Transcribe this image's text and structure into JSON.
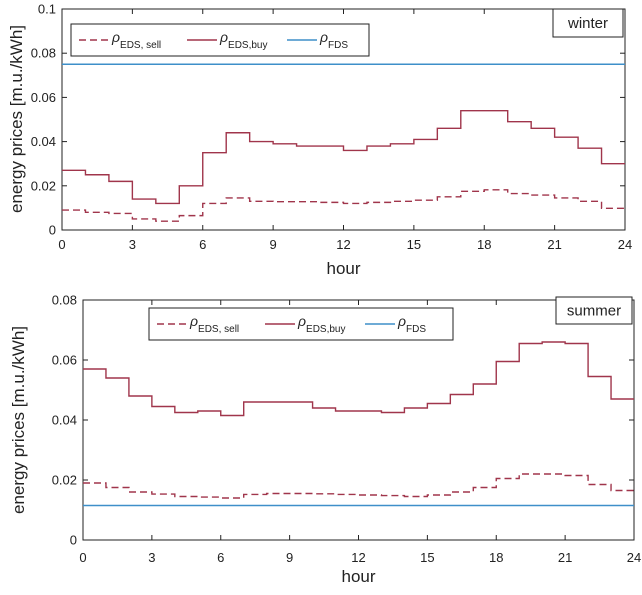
{
  "chart_data": [
    {
      "type": "line",
      "tag": "winter",
      "xlabel": "hour",
      "ylabel": "energy prices [m.u./kWh]",
      "xlim": [
        0,
        24
      ],
      "ylim": [
        0,
        0.1
      ],
      "xticks": [
        0,
        3,
        6,
        9,
        12,
        15,
        18,
        21,
        24
      ],
      "yticks": [
        0,
        0.02,
        0.04,
        0.06,
        0.08,
        0.1
      ],
      "ytick_labels": [
        "0",
        "0.02",
        "0.04",
        "0.06",
        "0.08",
        "0.1"
      ],
      "legend_position": "top-left",
      "series": [
        {
          "name_base": "ρ",
          "name_sub": "EDS, sell",
          "style": "stairs-dashed",
          "color": "#a0354b",
          "values": [
            0.009,
            0.008,
            0.0075,
            0.005,
            0.004,
            0.0065,
            0.012,
            0.0145,
            0.013,
            0.0128,
            0.0128,
            0.0125,
            0.012,
            0.0125,
            0.013,
            0.0135,
            0.015,
            0.0175,
            0.0182,
            0.0165,
            0.0158,
            0.0145,
            0.013,
            0.0098
          ]
        },
        {
          "name_base": "ρ",
          "name_sub": "EDS,buy",
          "style": "stairs",
          "color": "#a0354b",
          "values": [
            0.027,
            0.025,
            0.022,
            0.014,
            0.012,
            0.02,
            0.035,
            0.044,
            0.04,
            0.039,
            0.038,
            0.038,
            0.036,
            0.038,
            0.039,
            0.041,
            0.046,
            0.054,
            0.054,
            0.049,
            0.046,
            0.042,
            0.037,
            0.03
          ]
        },
        {
          "name_base": "ρ",
          "name_sub": "FDS",
          "style": "line",
          "color": "#3e8fc9",
          "values": [
            0.075,
            0.075
          ]
        }
      ]
    },
    {
      "type": "line",
      "tag": "summer",
      "xlabel": "hour",
      "ylabel": "energy prices [m.u./kWh]",
      "xlim": [
        0,
        24
      ],
      "ylim": [
        0,
        0.08
      ],
      "xticks": [
        0,
        3,
        6,
        9,
        12,
        15,
        18,
        21,
        24
      ],
      "yticks": [
        0,
        0.02,
        0.04,
        0.06,
        0.08
      ],
      "ytick_labels": [
        "0",
        "0.02",
        "0.04",
        "0.06",
        "0.08"
      ],
      "legend_position": "top-center",
      "series": [
        {
          "name_base": "ρ",
          "name_sub": "EDS, sell",
          "style": "stairs-dashed",
          "color": "#a0354b",
          "values": [
            0.019,
            0.0175,
            0.016,
            0.0153,
            0.0145,
            0.0143,
            0.014,
            0.0152,
            0.0155,
            0.0155,
            0.0154,
            0.0152,
            0.015,
            0.0148,
            0.0145,
            0.015,
            0.016,
            0.0175,
            0.0205,
            0.022,
            0.022,
            0.0215,
            0.0185,
            0.0165
          ]
        },
        {
          "name_base": "ρ",
          "name_sub": "EDS,buy",
          "style": "stairs",
          "color": "#a0354b",
          "values": [
            0.057,
            0.054,
            0.048,
            0.0445,
            0.0425,
            0.043,
            0.0415,
            0.046,
            0.046,
            0.046,
            0.044,
            0.043,
            0.043,
            0.0425,
            0.044,
            0.0455,
            0.0485,
            0.052,
            0.0595,
            0.0655,
            0.066,
            0.0655,
            0.0545,
            0.047
          ]
        },
        {
          "name_base": "ρ",
          "name_sub": "FDS",
          "style": "line",
          "color": "#3e8fc9",
          "values": [
            0.0115,
            0.0115
          ]
        }
      ]
    }
  ]
}
